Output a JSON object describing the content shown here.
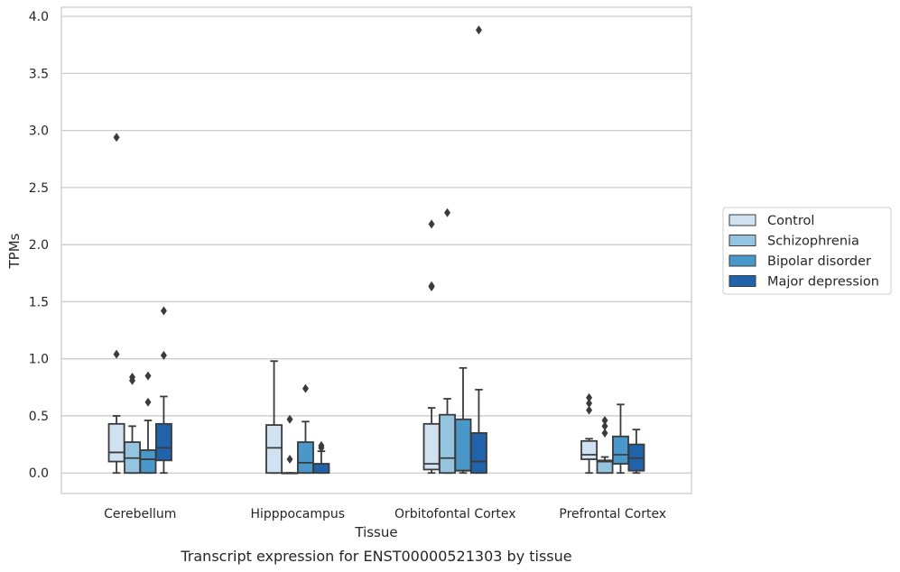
{
  "caption": "Transcript expression for ENST00000521303 by tissue",
  "chart_data": {
    "type": "box",
    "xlabel": "Tissue",
    "ylabel": "TPMs",
    "ylim": [
      -0.18,
      4.08
    ],
    "yticks": [
      "0.0",
      "0.5",
      "1.0",
      "1.5",
      "2.0",
      "2.5",
      "3.0",
      "3.5",
      "4.0"
    ],
    "grid": "horizontal",
    "legend_position": "right",
    "categories": [
      "Cerebellum",
      "Hipppocampus",
      "Orbitofontal Cortex",
      "Prefrontal Cortex"
    ],
    "series": [
      {
        "name": "Control",
        "color": "#d0e1f2",
        "boxes": [
          {
            "whisker_low": 0.0,
            "q1": 0.1,
            "median": 0.18,
            "q3": 0.43,
            "whisker_high": 0.5,
            "outliers": [
              1.04,
              2.94
            ]
          },
          {
            "whisker_low": 0.0,
            "q1": 0.0,
            "median": 0.22,
            "q3": 0.42,
            "whisker_high": 0.98,
            "outliers": []
          },
          {
            "whisker_low": 0.0,
            "q1": 0.03,
            "median": 0.08,
            "q3": 0.43,
            "whisker_high": 0.57,
            "outliers": [
              1.63,
              1.64,
              2.18
            ]
          },
          {
            "whisker_low": 0.0,
            "q1": 0.12,
            "median": 0.16,
            "q3": 0.28,
            "whisker_high": 0.3,
            "outliers": [
              0.55,
              0.61,
              0.66
            ]
          }
        ]
      },
      {
        "name": "Schizophrenia",
        "color": "#94c4df",
        "boxes": [
          {
            "whisker_low": 0.0,
            "q1": 0.0,
            "median": 0.13,
            "q3": 0.27,
            "whisker_high": 0.41,
            "outliers": [
              0.81,
              0.84
            ]
          },
          {
            "whisker_low": 0.0,
            "q1": 0.0,
            "median": 0.0,
            "q3": 0.0,
            "whisker_high": 0.0,
            "outliers": [
              0.12,
              0.47
            ]
          },
          {
            "whisker_low": 0.0,
            "q1": 0.0,
            "median": 0.13,
            "q3": 0.51,
            "whisker_high": 0.65,
            "outliers": [
              2.28
            ]
          },
          {
            "whisker_low": 0.0,
            "q1": 0.0,
            "median": 0.1,
            "q3": 0.11,
            "whisker_high": 0.14,
            "outliers": [
              0.35,
              0.41,
              0.46
            ]
          }
        ]
      },
      {
        "name": "Bipolar disorder",
        "color": "#4a98c9",
        "boxes": [
          {
            "whisker_low": 0.0,
            "q1": 0.0,
            "median": 0.12,
            "q3": 0.2,
            "whisker_high": 0.46,
            "outliers": [
              0.62,
              0.85
            ]
          },
          {
            "whisker_low": 0.0,
            "q1": 0.0,
            "median": 0.09,
            "q3": 0.27,
            "whisker_high": 0.45,
            "outliers": [
              0.74
            ]
          },
          {
            "whisker_low": 0.0,
            "q1": 0.02,
            "median": 0.02,
            "q3": 0.47,
            "whisker_high": 0.92,
            "outliers": []
          },
          {
            "whisker_low": 0.0,
            "q1": 0.08,
            "median": 0.16,
            "q3": 0.32,
            "whisker_high": 0.6,
            "outliers": []
          }
        ]
      },
      {
        "name": "Major depression",
        "color": "#2163aa",
        "boxes": [
          {
            "whisker_low": 0.0,
            "q1": 0.11,
            "median": 0.22,
            "q3": 0.43,
            "whisker_high": 0.67,
            "outliers": [
              1.03,
              1.42
            ]
          },
          {
            "whisker_low": 0.0,
            "q1": 0.0,
            "median": 0.08,
            "q3": 0.08,
            "whisker_high": 0.19,
            "outliers": [
              0.22,
              0.24
            ]
          },
          {
            "whisker_low": 0.0,
            "q1": 0.0,
            "median": 0.1,
            "q3": 0.35,
            "whisker_high": 0.73,
            "outliers": [
              3.88
            ]
          },
          {
            "whisker_low": 0.0,
            "q1": 0.02,
            "median": 0.13,
            "q3": 0.25,
            "whisker_high": 0.38,
            "outliers": []
          }
        ]
      }
    ]
  }
}
